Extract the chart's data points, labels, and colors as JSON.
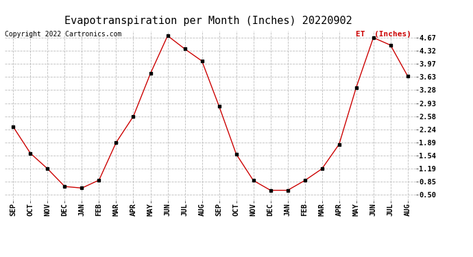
{
  "title": "Evapotranspiration per Month (Inches) 20220902",
  "copyright": "Copyright 2022 Cartronics.com",
  "legend_label": "ET  (Inches)",
  "months": [
    "SEP",
    "OCT",
    "NOV",
    "DEC",
    "JAN",
    "FEB",
    "MAR",
    "APR",
    "MAY",
    "JUN",
    "JUL",
    "AUG",
    "SEP",
    "OCT",
    "NOV",
    "DEC",
    "JAN",
    "FEB",
    "MAR",
    "APR",
    "MAY",
    "JUN",
    "JUL",
    "AUG"
  ],
  "values": [
    2.3,
    1.6,
    1.19,
    0.72,
    0.68,
    0.89,
    1.89,
    2.58,
    3.72,
    4.72,
    4.37,
    4.05,
    2.85,
    1.58,
    0.88,
    0.62,
    0.62,
    0.88,
    1.19,
    1.84,
    3.35,
    4.67,
    4.47,
    3.65
  ],
  "line_color": "#cc0000",
  "marker_color": "#000000",
  "background_color": "#ffffff",
  "grid_color": "#bbbbbb",
  "title_color": "#000000",
  "copyright_color": "#000000",
  "legend_color": "#cc0000",
  "yticks": [
    0.5,
    0.85,
    1.19,
    1.54,
    1.89,
    2.24,
    2.58,
    2.93,
    3.28,
    3.63,
    3.97,
    4.32,
    4.67
  ],
  "ylim": [
    0.35,
    4.85
  ],
  "title_fontsize": 11,
  "copyright_fontsize": 7,
  "legend_fontsize": 8,
  "tick_fontsize": 7.5
}
